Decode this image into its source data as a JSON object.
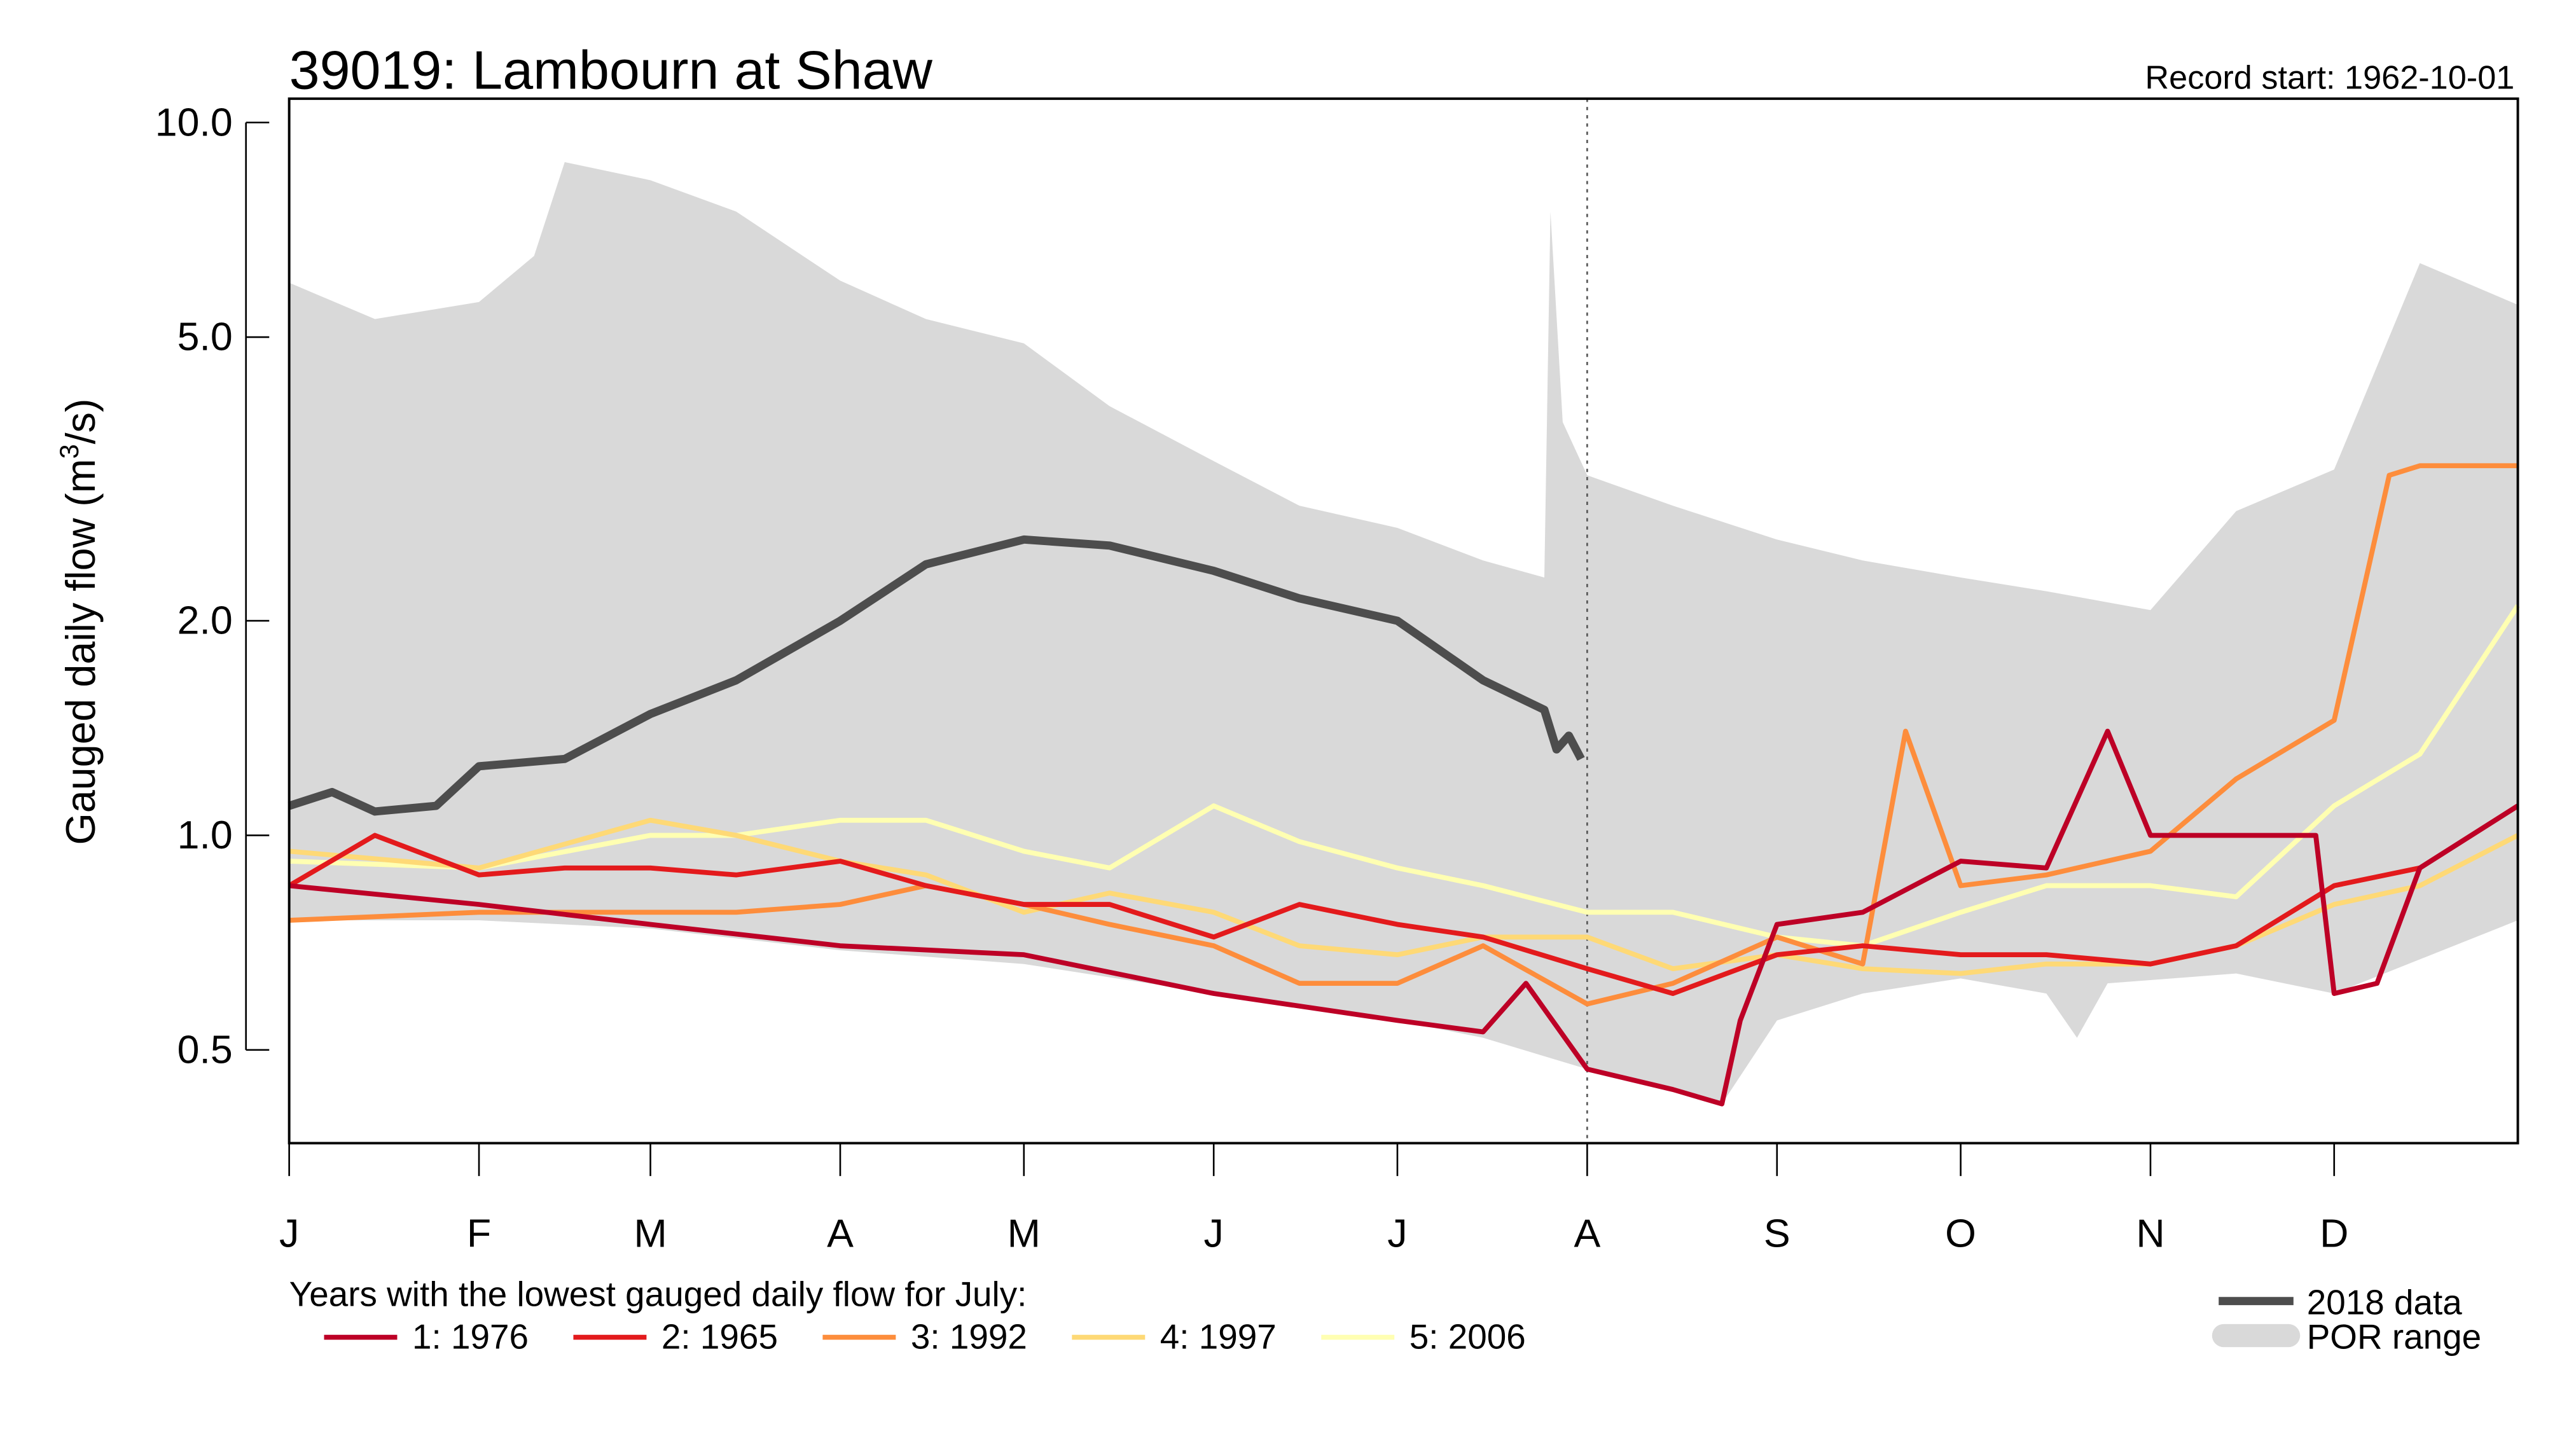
{
  "chart_data": {
    "type": "line",
    "title": "39019: Lambourn at Shaw",
    "subtitle": "Record start: 1962-10-01",
    "ylabel": "Gauged daily flow (m3/s)",
    "ylabel_main": "Gauged daily flow (m",
    "ylabel_sup": "3",
    "ylabel_end": "/s)",
    "yscale": "log",
    "ylim": [
      0.37,
      10.8
    ],
    "yticks": [
      10.0,
      5.0,
      2.0,
      1.0,
      0.5
    ],
    "ytick_labels": [
      "10.0",
      "5.0",
      "2.0",
      "1.0",
      "0.5"
    ],
    "xlim": [
      "01-01",
      "12-31"
    ],
    "xticks": [
      "01-01",
      "02-01",
      "03-01",
      "04-01",
      "05-01",
      "06-01",
      "07-01",
      "08-01",
      "09-01",
      "10-01",
      "11-01",
      "12-01"
    ],
    "xtick_labels": [
      "J",
      "F",
      "M",
      "A",
      "M",
      "J",
      "J",
      "A",
      "S",
      "O",
      "N",
      "D"
    ],
    "vline": "08-01",
    "legend_title": "Years with the lowest gauged daily flow for July:",
    "por_range": {
      "name": "POR range",
      "color": "#d9d9d9",
      "upper": [
        [
          "01-01",
          5.96
        ],
        [
          "01-15",
          5.3
        ],
        [
          "02-01",
          5.6
        ],
        [
          "02-10",
          6.5
        ],
        [
          "02-15",
          8.8
        ],
        [
          "03-01",
          8.3
        ],
        [
          "03-15",
          7.5
        ],
        [
          "04-01",
          6.0
        ],
        [
          "04-15",
          5.3
        ],
        [
          "05-01",
          4.9
        ],
        [
          "05-15",
          4.0
        ],
        [
          "06-01",
          3.35
        ],
        [
          "06-15",
          2.9
        ],
        [
          "07-01",
          2.7
        ],
        [
          "07-15",
          2.43
        ],
        [
          "07-25",
          2.3
        ],
        [
          "07-26",
          7.5
        ],
        [
          "07-28",
          3.8
        ],
        [
          "08-01",
          3.2
        ],
        [
          "08-15",
          2.9
        ],
        [
          "09-01",
          2.6
        ],
        [
          "09-15",
          2.43
        ],
        [
          "10-01",
          2.3
        ],
        [
          "10-15",
          2.2
        ],
        [
          "11-01",
          2.07
        ],
        [
          "11-15",
          2.85
        ],
        [
          "12-01",
          3.26
        ],
        [
          "12-15",
          6.35
        ],
        [
          "12-31",
          5.55
        ]
      ],
      "lower": [
        [
          "01-01",
          0.76
        ],
        [
          "02-01",
          0.76
        ],
        [
          "03-01",
          0.74
        ],
        [
          "04-01",
          0.69
        ],
        [
          "05-01",
          0.66
        ],
        [
          "06-01",
          0.6
        ],
        [
          "07-01",
          0.55
        ],
        [
          "07-15",
          0.52
        ],
        [
          "08-01",
          0.47
        ],
        [
          "08-15",
          0.44
        ],
        [
          "08-23",
          0.42
        ],
        [
          "09-01",
          0.55
        ],
        [
          "09-15",
          0.6
        ],
        [
          "10-01",
          0.63
        ],
        [
          "10-15",
          0.6
        ],
        [
          "10-20",
          0.52
        ],
        [
          "10-25",
          0.62
        ],
        [
          "11-15",
          0.64
        ],
        [
          "12-01",
          0.6
        ],
        [
          "12-15",
          0.67
        ],
        [
          "12-31",
          0.76
        ]
      ]
    },
    "series": [
      {
        "name": "2018 data",
        "color": "#4d4d4d",
        "width": 5,
        "points": [
          [
            "01-01",
            1.1
          ],
          [
            "01-08",
            1.15
          ],
          [
            "01-15",
            1.08
          ],
          [
            "01-25",
            1.1
          ],
          [
            "02-01",
            1.25
          ],
          [
            "02-15",
            1.28
          ],
          [
            "03-01",
            1.48
          ],
          [
            "03-15",
            1.65
          ],
          [
            "04-01",
            2.0
          ],
          [
            "04-15",
            2.4
          ],
          [
            "05-01",
            2.6
          ],
          [
            "05-15",
            2.55
          ],
          [
            "06-01",
            2.35
          ],
          [
            "06-15",
            2.15
          ],
          [
            "07-01",
            2.0
          ],
          [
            "07-15",
            1.65
          ],
          [
            "07-25",
            1.5
          ],
          [
            "07-27",
            1.32
          ],
          [
            "07-29",
            1.38
          ],
          [
            "07-31",
            1.28
          ]
        ]
      },
      {
        "name": "1: 1976",
        "color": "#bd0026",
        "width": 3,
        "points": [
          [
            "01-01",
            0.85
          ],
          [
            "02-01",
            0.8
          ],
          [
            "03-01",
            0.75
          ],
          [
            "04-01",
            0.7
          ],
          [
            "05-01",
            0.68
          ],
          [
            "06-01",
            0.6
          ],
          [
            "07-01",
            0.55
          ],
          [
            "07-15",
            0.53
          ],
          [
            "07-22",
            0.62
          ],
          [
            "08-01",
            0.47
          ],
          [
            "08-15",
            0.44
          ],
          [
            "08-23",
            0.42
          ],
          [
            "08-26",
            0.55
          ],
          [
            "09-01",
            0.75
          ],
          [
            "09-15",
            0.78
          ],
          [
            "10-01",
            0.92
          ],
          [
            "10-15",
            0.9
          ],
          [
            "10-25",
            1.4
          ],
          [
            "11-01",
            1.0
          ],
          [
            "11-15",
            1.0
          ],
          [
            "11-28",
            1.0
          ],
          [
            "12-01",
            0.6
          ],
          [
            "12-08",
            0.62
          ],
          [
            "12-15",
            0.9
          ],
          [
            "12-31",
            1.1
          ]
        ]
      },
      {
        "name": "2: 1965",
        "color": "#e31a1c",
        "width": 3,
        "points": [
          [
            "01-01",
            0.85
          ],
          [
            "01-15",
            1.0
          ],
          [
            "02-01",
            0.88
          ],
          [
            "02-15",
            0.9
          ],
          [
            "03-01",
            0.9
          ],
          [
            "03-15",
            0.88
          ],
          [
            "04-01",
            0.92
          ],
          [
            "04-15",
            0.85
          ],
          [
            "05-01",
            0.8
          ],
          [
            "05-15",
            0.8
          ],
          [
            "06-01",
            0.72
          ],
          [
            "06-15",
            0.8
          ],
          [
            "07-01",
            0.75
          ],
          [
            "07-15",
            0.72
          ],
          [
            "08-01",
            0.65
          ],
          [
            "08-15",
            0.6
          ],
          [
            "09-01",
            0.68
          ],
          [
            "09-15",
            0.7
          ],
          [
            "10-01",
            0.68
          ],
          [
            "10-15",
            0.68
          ],
          [
            "11-01",
            0.66
          ],
          [
            "11-15",
            0.7
          ],
          [
            "12-01",
            0.85
          ],
          [
            "12-15",
            0.9
          ],
          [
            "12-31",
            1.1
          ]
        ]
      },
      {
        "name": "3: 1992",
        "color": "#fd8d3c",
        "width": 3,
        "points": [
          [
            "01-01",
            0.76
          ],
          [
            "02-01",
            0.78
          ],
          [
            "03-01",
            0.78
          ],
          [
            "03-15",
            0.78
          ],
          [
            "04-01",
            0.8
          ],
          [
            "04-15",
            0.85
          ],
          [
            "05-01",
            0.8
          ],
          [
            "05-15",
            0.75
          ],
          [
            "06-01",
            0.7
          ],
          [
            "06-15",
            0.62
          ],
          [
            "07-01",
            0.62
          ],
          [
            "07-15",
            0.7
          ],
          [
            "08-01",
            0.58
          ],
          [
            "08-15",
            0.62
          ],
          [
            "09-01",
            0.72
          ],
          [
            "09-15",
            0.66
          ],
          [
            "09-22",
            1.4
          ],
          [
            "10-01",
            0.85
          ],
          [
            "10-15",
            0.88
          ],
          [
            "11-01",
            0.95
          ],
          [
            "11-15",
            1.2
          ],
          [
            "12-01",
            1.45
          ],
          [
            "12-10",
            3.2
          ],
          [
            "12-15",
            3.3
          ],
          [
            "12-31",
            3.3
          ]
        ]
      },
      {
        "name": "4: 1997",
        "color": "#fed976",
        "width": 3,
        "points": [
          [
            "01-01",
            0.95
          ],
          [
            "02-01",
            0.9
          ],
          [
            "03-01",
            1.05
          ],
          [
            "03-15",
            1.0
          ],
          [
            "04-01",
            0.92
          ],
          [
            "04-15",
            0.88
          ],
          [
            "05-01",
            0.78
          ],
          [
            "05-15",
            0.83
          ],
          [
            "06-01",
            0.78
          ],
          [
            "06-15",
            0.7
          ],
          [
            "07-01",
            0.68
          ],
          [
            "07-15",
            0.72
          ],
          [
            "08-01",
            0.72
          ],
          [
            "08-15",
            0.65
          ],
          [
            "09-01",
            0.68
          ],
          [
            "09-15",
            0.65
          ],
          [
            "10-01",
            0.64
          ],
          [
            "10-15",
            0.66
          ],
          [
            "11-01",
            0.66
          ],
          [
            "11-15",
            0.7
          ],
          [
            "12-01",
            0.8
          ],
          [
            "12-15",
            0.85
          ],
          [
            "12-31",
            1.0
          ]
        ]
      },
      {
        "name": "5: 2006",
        "color": "#ffffb2",
        "width": 3,
        "points": [
          [
            "01-01",
            0.92
          ],
          [
            "02-01",
            0.9
          ],
          [
            "03-01",
            1.0
          ],
          [
            "03-15",
            1.0
          ],
          [
            "04-01",
            1.05
          ],
          [
            "04-15",
            1.05
          ],
          [
            "05-01",
            0.95
          ],
          [
            "05-15",
            0.9
          ],
          [
            "06-01",
            1.1
          ],
          [
            "06-15",
            0.98
          ],
          [
            "07-01",
            0.9
          ],
          [
            "07-15",
            0.85
          ],
          [
            "08-01",
            0.78
          ],
          [
            "08-15",
            0.78
          ],
          [
            "09-01",
            0.72
          ],
          [
            "09-15",
            0.7
          ],
          [
            "10-01",
            0.78
          ],
          [
            "10-15",
            0.85
          ],
          [
            "11-01",
            0.85
          ],
          [
            "11-15",
            0.82
          ],
          [
            "12-01",
            1.1
          ],
          [
            "12-15",
            1.3
          ],
          [
            "12-31",
            2.1
          ]
        ]
      }
    ],
    "legend_right": [
      "2018 data",
      "POR range"
    ],
    "grid": false
  }
}
